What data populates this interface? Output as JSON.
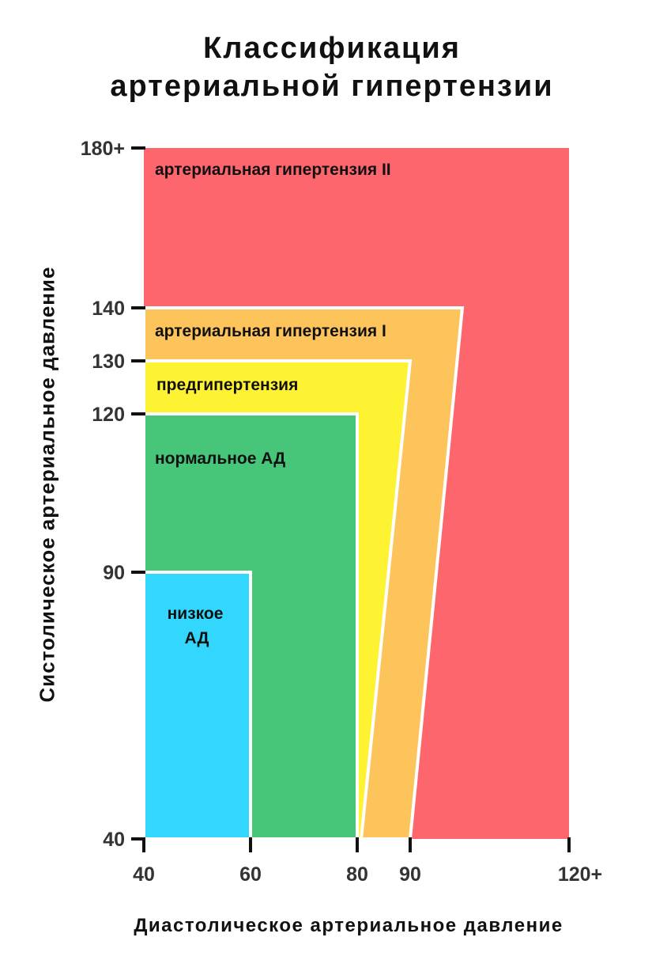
{
  "title_line1": "Классификация",
  "title_line2": "артериальной гипертензии",
  "chart_data": {
    "type": "area",
    "title": "Классификация артериальной гипертензии",
    "xlabel": "Диастолическое артериальное давление",
    "ylabel": "Систолическое артериальное давление",
    "x_ticks": [
      "40",
      "60",
      "80",
      "90",
      "120+"
    ],
    "y_ticks": [
      "40",
      "90",
      "120",
      "130",
      "140",
      "180+"
    ],
    "regions": [
      {
        "name": "артериальная гипертензия II",
        "label": "артериальная гипертензия II",
        "systolic_max": 180,
        "diastolic_max": 120,
        "color": "#FE666D"
      },
      {
        "name": "артериальная гипертензия I",
        "label": "артериальная гипертензия I",
        "systolic_max": 140,
        "diastolic_max": 90,
        "color": "#FDC45C"
      },
      {
        "name": "предгипертензия",
        "label": "предгипертензия",
        "systolic_max": 130,
        "diastolic_max": 80,
        "color": "#FEF333"
      },
      {
        "name": "нормальное АД",
        "label": "нормальное АД",
        "systolic_max": 120,
        "diastolic_max": 80,
        "color": "#47C67A"
      },
      {
        "name": "низкое АД",
        "label_lines": [
          "низкое",
          "АД"
        ],
        "systolic_max": 90,
        "diastolic_max": 60,
        "color": "#33D6FC"
      }
    ]
  }
}
